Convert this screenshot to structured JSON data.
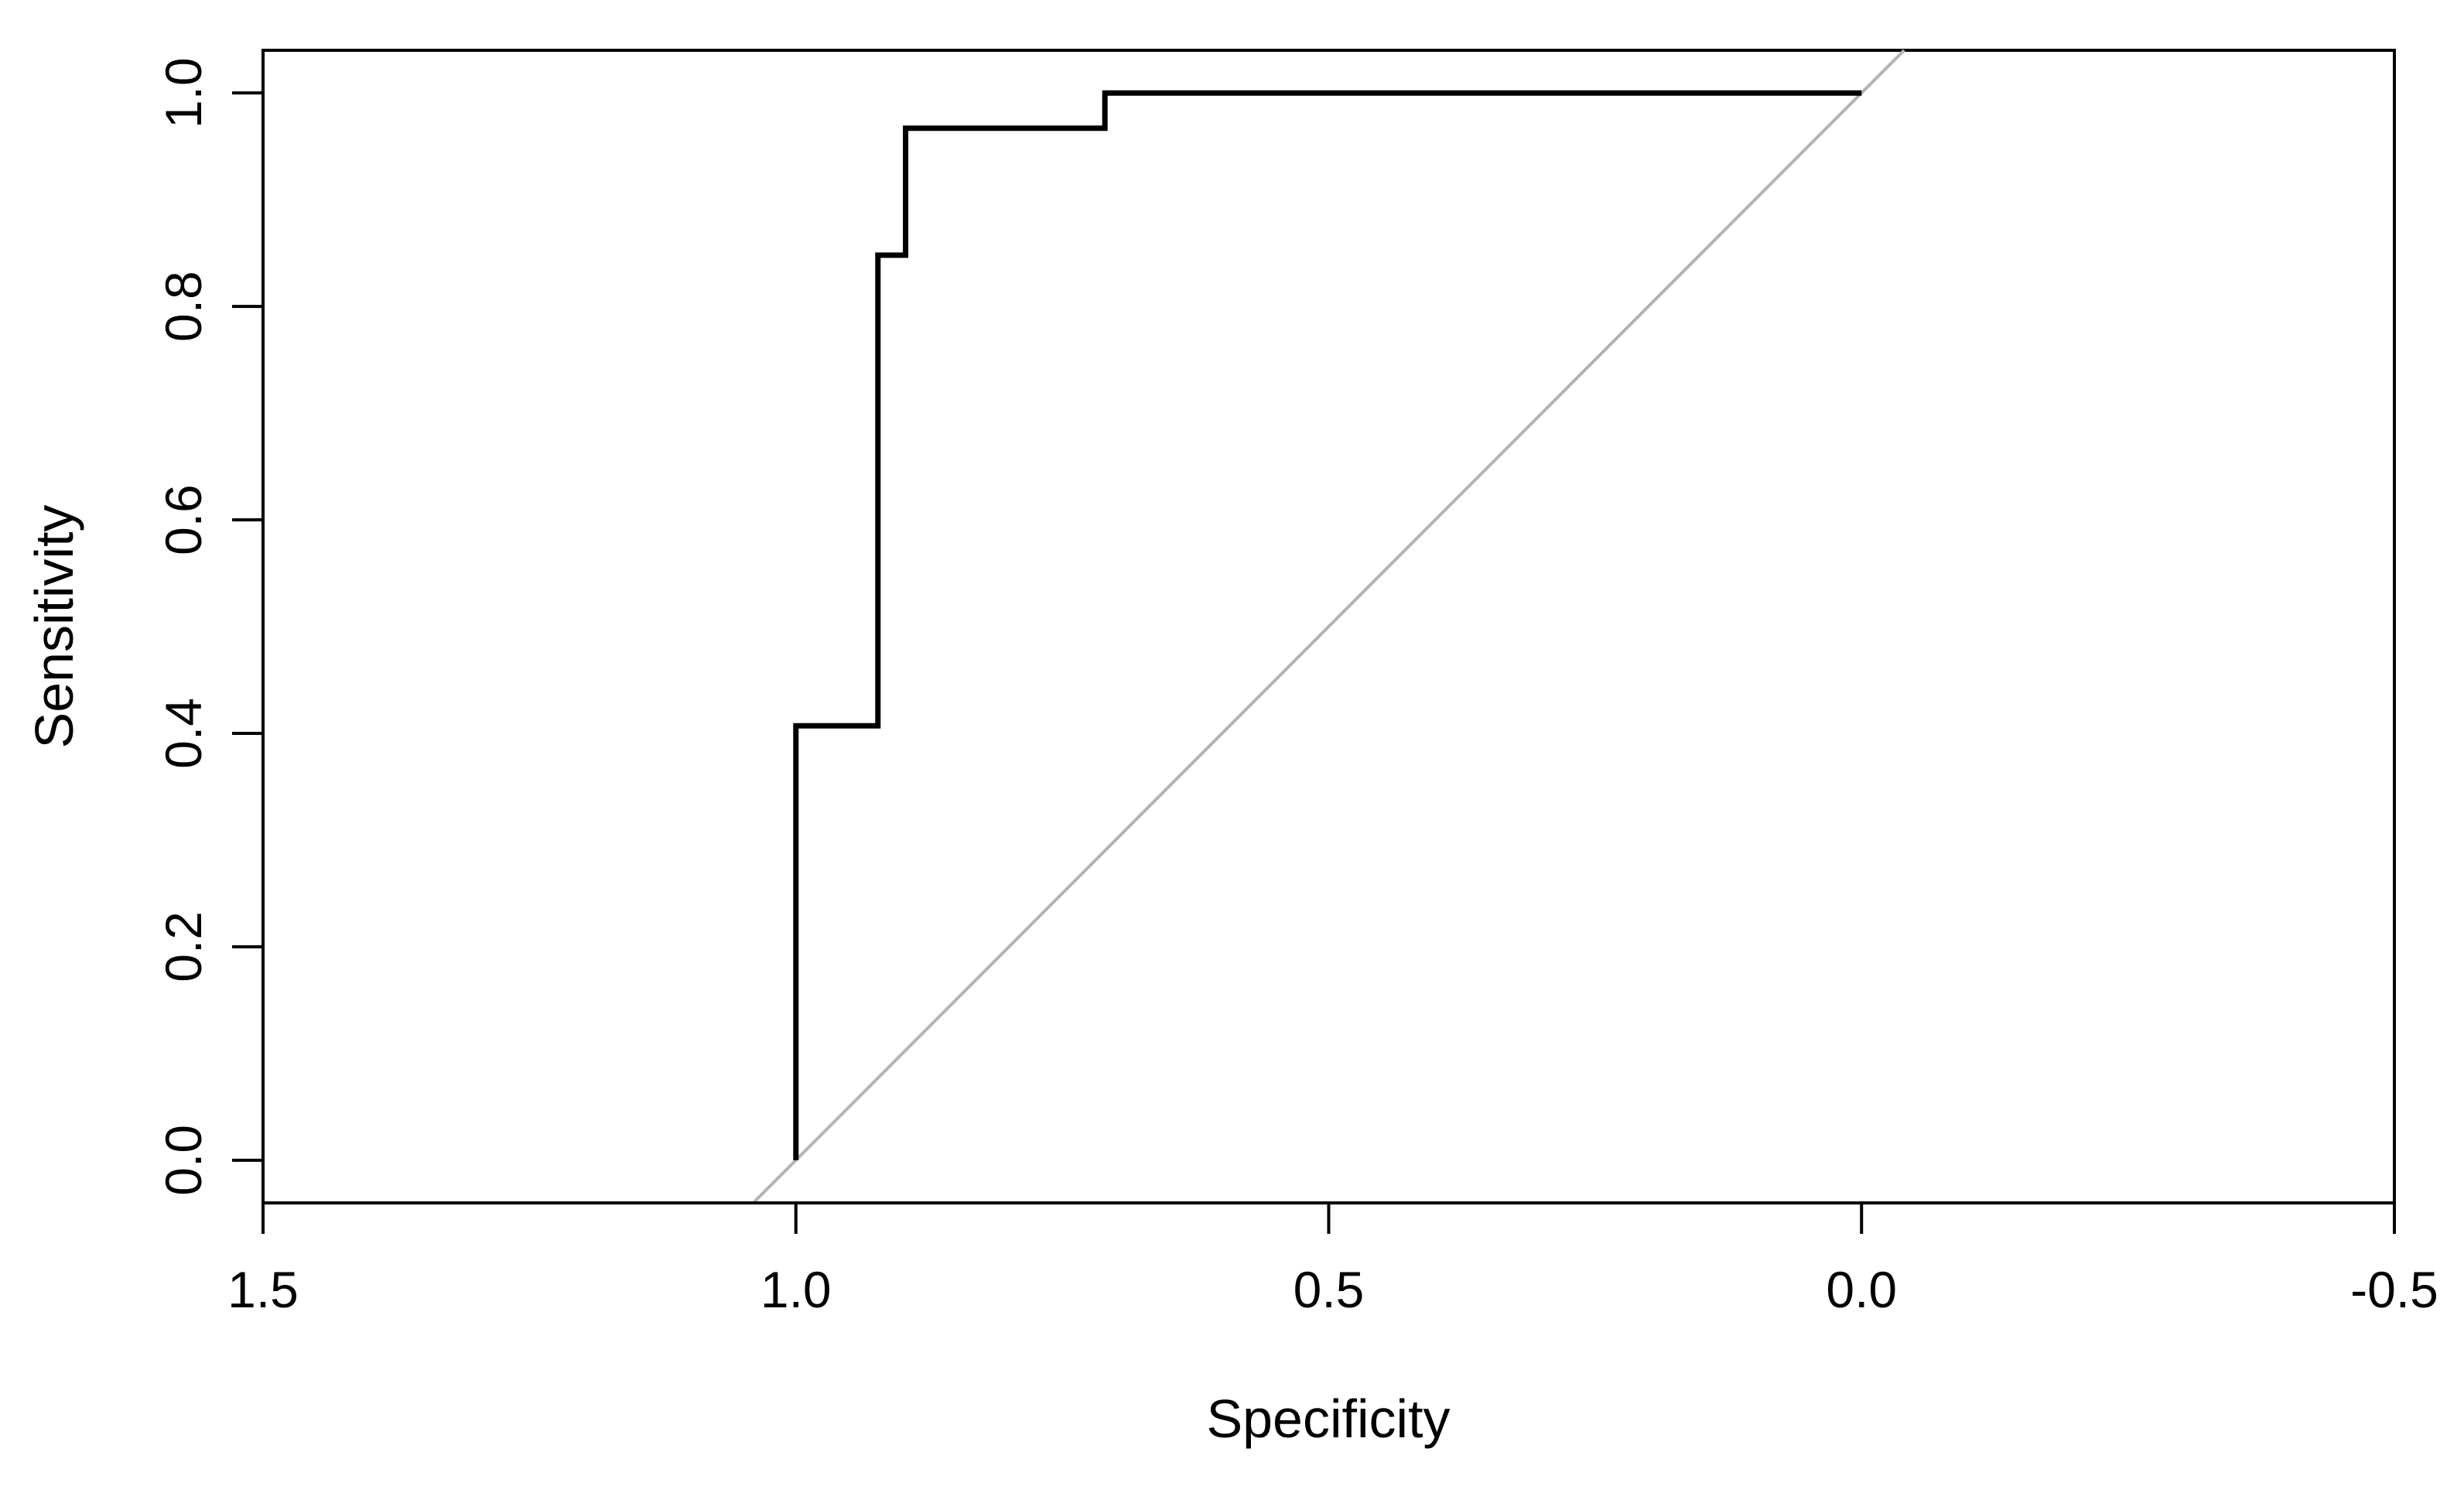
{
  "chart_data": {
    "type": "line",
    "title": "",
    "xlabel": "Specificity",
    "ylabel": "Sensitivity",
    "x_reversed": true,
    "xlim": [
      1.5,
      -0.5
    ],
    "ylim": [
      -0.04,
      1.04
    ],
    "xticks": [
      1.5,
      1.0,
      0.5,
      0.0,
      -0.5
    ],
    "xtick_labels": [
      "1.5",
      "1.0",
      "0.5",
      "0.0",
      "-0.5"
    ],
    "yticks": [
      0.0,
      0.2,
      0.4,
      0.6,
      0.8,
      1.0
    ],
    "ytick_labels": [
      "0.0",
      "0.2",
      "0.4",
      "0.6",
      "0.8",
      "1.0"
    ],
    "grid": false,
    "legend": "none",
    "series": [
      {
        "style": "step",
        "color": "#000000",
        "x": [
          1.0,
          1.0,
          0.923,
          0.923,
          0.897,
          0.897,
          0.71,
          0.71,
          0.0
        ],
        "y": [
          0.0,
          0.407,
          0.407,
          0.848,
          0.848,
          0.967,
          0.967,
          1.0,
          1.0
        ]
      },
      {
        "style": "reference-diagonal",
        "color": "#b3b3b3",
        "x": [
          1.04,
          -0.04
        ],
        "y": [
          -0.04,
          1.04
        ]
      }
    ]
  }
}
